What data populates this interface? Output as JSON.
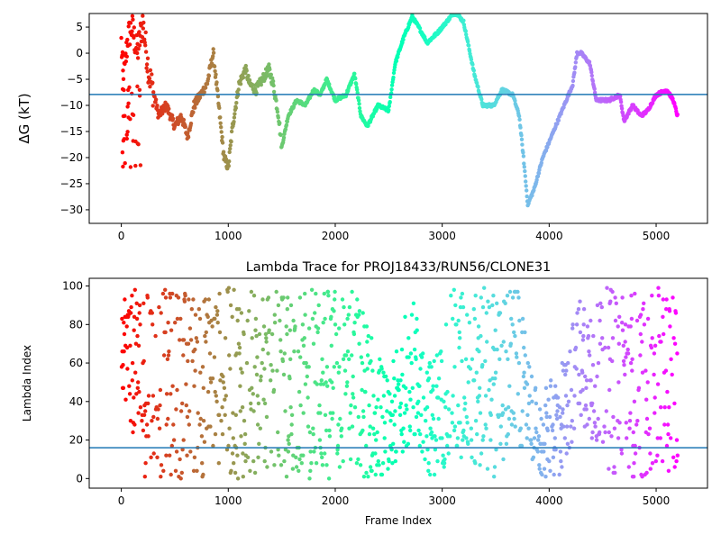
{
  "chart_data": [
    {
      "type": "scatter",
      "title": "",
      "xlabel": "",
      "ylabel": "ΔG (kT)",
      "xlim": [
        -300,
        5480
      ],
      "ylim": [
        -32.6,
        7.6
      ],
      "xticks": [
        0,
        1000,
        2000,
        3000,
        4000,
        5000
      ],
      "yticks": [
        -30,
        -25,
        -20,
        -15,
        -10,
        -5,
        0,
        5
      ],
      "hline": -7.9,
      "hline_color": "#1f77b4",
      "colormap": "rainbow (red at frame 0 to violet at frame 5200)",
      "approx_trace": [
        [
          0,
          2
        ],
        [
          20,
          -6
        ],
        [
          60,
          3
        ],
        [
          100,
          5
        ],
        [
          150,
          0
        ],
        [
          200,
          6
        ],
        [
          260,
          -4
        ],
        [
          350,
          -12
        ],
        [
          420,
          -10
        ],
        [
          500,
          -14
        ],
        [
          560,
          -12
        ],
        [
          620,
          -16
        ],
        [
          680,
          -10
        ],
        [
          740,
          -8
        ],
        [
          800,
          -6
        ],
        [
          860,
          0
        ],
        [
          900,
          -8
        ],
        [
          960,
          -20
        ],
        [
          1000,
          -22
        ],
        [
          1040,
          -14
        ],
        [
          1100,
          -6
        ],
        [
          1160,
          -3
        ],
        [
          1200,
          -6
        ],
        [
          1260,
          -7
        ],
        [
          1320,
          -5
        ],
        [
          1380,
          -3
        ],
        [
          1420,
          -6
        ],
        [
          1470,
          -12
        ],
        [
          1500,
          -18
        ],
        [
          1560,
          -12
        ],
        [
          1640,
          -9
        ],
        [
          1720,
          -10
        ],
        [
          1800,
          -7
        ],
        [
          1860,
          -8
        ],
        [
          1920,
          -5
        ],
        [
          2000,
          -9
        ],
        [
          2100,
          -8
        ],
        [
          2180,
          -4
        ],
        [
          2240,
          -12
        ],
        [
          2300,
          -14
        ],
        [
          2400,
          -10
        ],
        [
          2500,
          -11
        ],
        [
          2560,
          -2
        ],
        [
          2640,
          3
        ],
        [
          2720,
          7
        ],
        [
          2780,
          5
        ],
        [
          2860,
          2
        ],
        [
          2960,
          4
        ],
        [
          3040,
          6
        ],
        [
          3120,
          8
        ],
        [
          3200,
          6
        ],
        [
          3300,
          -4
        ],
        [
          3380,
          -10
        ],
        [
          3480,
          -10
        ],
        [
          3560,
          -7
        ],
        [
          3660,
          -8
        ],
        [
          3720,
          -12
        ],
        [
          3760,
          -20
        ],
        [
          3800,
          -29
        ],
        [
          3860,
          -26
        ],
        [
          3940,
          -20
        ],
        [
          4040,
          -15
        ],
        [
          4140,
          -10
        ],
        [
          4220,
          -6
        ],
        [
          4260,
          0
        ],
        [
          4300,
          0
        ],
        [
          4380,
          -2
        ],
        [
          4440,
          -9
        ],
        [
          4560,
          -9
        ],
        [
          4660,
          -8
        ],
        [
          4700,
          -13
        ],
        [
          4780,
          -10
        ],
        [
          4860,
          -12
        ],
        [
          4920,
          -11
        ],
        [
          5000,
          -8
        ],
        [
          5100,
          -7
        ],
        [
          5160,
          -9
        ],
        [
          5200,
          -12
        ]
      ]
    },
    {
      "type": "scatter",
      "title": "Lambda Trace for PROJ18433/RUN56/CLONE31",
      "xlabel": "Frame Index",
      "ylabel": "Lambda Index",
      "xlim": [
        -300,
        5480
      ],
      "ylim": [
        -5,
        104
      ],
      "xticks": [
        0,
        1000,
        2000,
        3000,
        4000,
        5000
      ],
      "yticks": [
        0,
        20,
        40,
        60,
        80,
        100
      ],
      "hline": 16,
      "hline_color": "#1f77b4",
      "colormap": "rainbow (red at frame 0 to violet at frame 5200)",
      "approx_density": [
        [
          0,
          50,
          99
        ],
        [
          200,
          0,
          99
        ],
        [
          600,
          0,
          99
        ],
        [
          900,
          0,
          99
        ],
        [
          1100,
          0,
          99
        ],
        [
          1500,
          0,
          99
        ],
        [
          1900,
          0,
          99
        ],
        [
          2200,
          0,
          99
        ],
        [
          2500,
          0,
          50
        ],
        [
          2700,
          20,
          99
        ],
        [
          2900,
          0,
          60
        ],
        [
          3100,
          10,
          99
        ],
        [
          3500,
          0,
          99
        ],
        [
          3700,
          20,
          99
        ],
        [
          3900,
          0,
          40
        ],
        [
          4100,
          0,
          60
        ],
        [
          4300,
          30,
          99
        ],
        [
          4600,
          0,
          99
        ],
        [
          4900,
          0,
          99
        ],
        [
          5200,
          5,
          99
        ]
      ]
    }
  ]
}
